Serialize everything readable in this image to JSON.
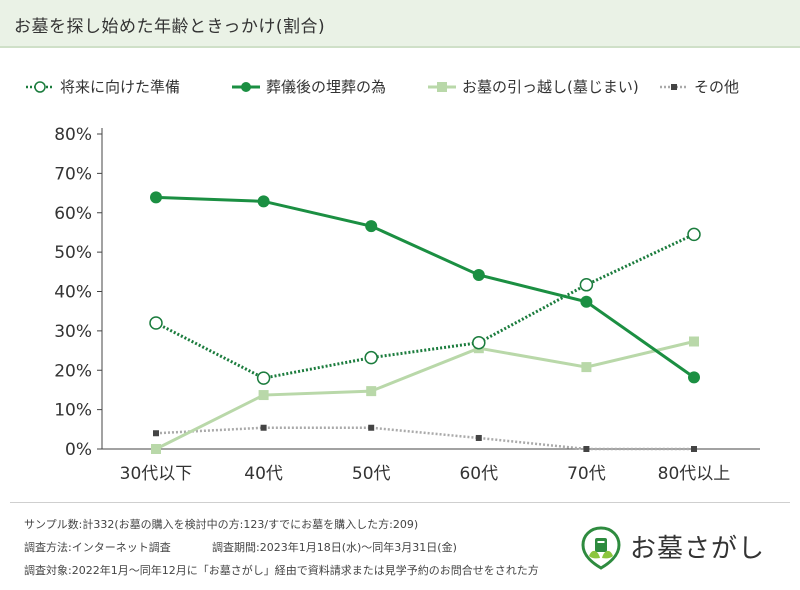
{
  "title": "お墓を探し始めた年齢ときっかけ(割合)",
  "chart_data": {
    "type": "line",
    "categories": [
      "30代以下",
      "40代",
      "50代",
      "60代",
      "70代",
      "80代以上"
    ],
    "ylim": [
      0,
      80
    ],
    "yticks": [
      "0%",
      "10%",
      "20%",
      "30%",
      "40%",
      "50%",
      "60%",
      "70%",
      "80%"
    ],
    "series": [
      {
        "name": "将来に向けた準備",
        "values": [
          32,
          18,
          23.2,
          27,
          41.7,
          54.5
        ],
        "color": "#1b7c3d",
        "style": "dotted-open-circle"
      },
      {
        "name": "葬儀後の埋葬の為",
        "values": [
          63.9,
          62.9,
          56.6,
          44.2,
          37.4,
          18.2
        ],
        "color": "#1b8f42",
        "style": "solid-filled-circle"
      },
      {
        "name": "お墓の引っ越し(墓じまい)",
        "values": [
          0,
          13.7,
          14.7,
          25.6,
          20.8,
          27.3
        ],
        "color": "#b9d8a9",
        "style": "solid-square"
      },
      {
        "name": "その他",
        "values": [
          4,
          5.4,
          5.4,
          2.8,
          0,
          0
        ],
        "color": "#aaaaaa",
        "style": "dotted-small-square"
      }
    ]
  },
  "footer": {
    "line1": "サンプル数:計332(お墓の購入を検討中の方:123/すでにお墓を購入した方:209)",
    "line2a": "調査方法:インターネット調査",
    "line2b": "調査期間:2023年1月18日(水)〜同年3月31日(金)",
    "line3": "調査対象:2022年1月〜同年12月に「お墓さがし」経由で資料請求または見学予約のお問合せをされた方"
  },
  "logo": {
    "text": "お墓さがし",
    "color": "#2e8b3f"
  }
}
